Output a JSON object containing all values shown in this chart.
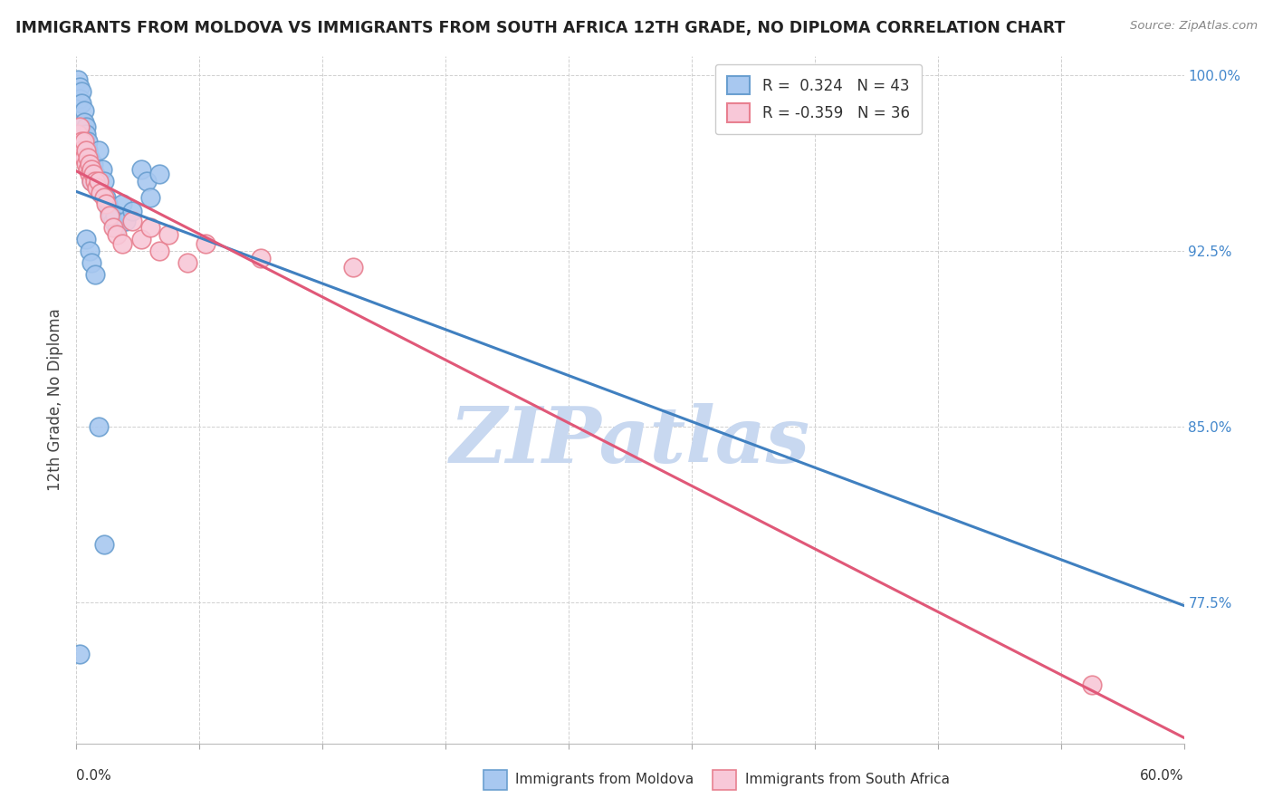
{
  "title": "IMMIGRANTS FROM MOLDOVA VS IMMIGRANTS FROM SOUTH AFRICA 12TH GRADE, NO DIPLOMA CORRELATION CHART",
  "source": "Source: ZipAtlas.com",
  "xlim": [
    0.0,
    0.6
  ],
  "ylim": [
    0.715,
    1.008
  ],
  "yticks": [
    1.0,
    0.925,
    0.85,
    0.775
  ],
  "ytick_labels": [
    "100.0%",
    "92.5%",
    "85.0%",
    "77.5%"
  ],
  "legend_blue_R": 0.324,
  "legend_blue_N": 43,
  "legend_pink_R": -0.359,
  "legend_pink_N": 36,
  "blue_scatter": [
    [
      0.001,
      0.998
    ],
    [
      0.002,
      0.995
    ],
    [
      0.002,
      0.99
    ],
    [
      0.003,
      0.993
    ],
    [
      0.003,
      0.988
    ],
    [
      0.004,
      0.985
    ],
    [
      0.004,
      0.98
    ],
    [
      0.005,
      0.978
    ],
    [
      0.005,
      0.975
    ],
    [
      0.006,
      0.972
    ],
    [
      0.006,
      0.968
    ],
    [
      0.007,
      0.965
    ],
    [
      0.007,
      0.96
    ],
    [
      0.008,
      0.958
    ],
    [
      0.008,
      0.955
    ],
    [
      0.009,
      0.962
    ],
    [
      0.01,
      0.958
    ],
    [
      0.011,
      0.955
    ],
    [
      0.012,
      0.968
    ],
    [
      0.013,
      0.95
    ],
    [
      0.014,
      0.96
    ],
    [
      0.015,
      0.955
    ],
    [
      0.016,
      0.948
    ],
    [
      0.017,
      0.945
    ],
    [
      0.018,
      0.942
    ],
    [
      0.019,
      0.94
    ],
    [
      0.02,
      0.938
    ],
    [
      0.021,
      0.94
    ],
    [
      0.022,
      0.935
    ],
    [
      0.025,
      0.945
    ],
    [
      0.027,
      0.938
    ],
    [
      0.03,
      0.942
    ],
    [
      0.035,
      0.96
    ],
    [
      0.038,
      0.955
    ],
    [
      0.04,
      0.948
    ],
    [
      0.045,
      0.958
    ],
    [
      0.005,
      0.93
    ],
    [
      0.007,
      0.925
    ],
    [
      0.008,
      0.92
    ],
    [
      0.01,
      0.915
    ],
    [
      0.012,
      0.85
    ],
    [
      0.015,
      0.8
    ],
    [
      0.002,
      0.753
    ]
  ],
  "pink_scatter": [
    [
      0.001,
      0.975
    ],
    [
      0.002,
      0.978
    ],
    [
      0.002,
      0.97
    ],
    [
      0.003,
      0.972
    ],
    [
      0.003,
      0.968
    ],
    [
      0.004,
      0.972
    ],
    [
      0.004,
      0.965
    ],
    [
      0.005,
      0.968
    ],
    [
      0.005,
      0.962
    ],
    [
      0.006,
      0.965
    ],
    [
      0.006,
      0.96
    ],
    [
      0.007,
      0.962
    ],
    [
      0.007,
      0.958
    ],
    [
      0.008,
      0.96
    ],
    [
      0.008,
      0.955
    ],
    [
      0.009,
      0.958
    ],
    [
      0.01,
      0.955
    ],
    [
      0.011,
      0.952
    ],
    [
      0.012,
      0.955
    ],
    [
      0.013,
      0.95
    ],
    [
      0.015,
      0.948
    ],
    [
      0.016,
      0.945
    ],
    [
      0.018,
      0.94
    ],
    [
      0.02,
      0.935
    ],
    [
      0.022,
      0.932
    ],
    [
      0.025,
      0.928
    ],
    [
      0.03,
      0.938
    ],
    [
      0.035,
      0.93
    ],
    [
      0.04,
      0.935
    ],
    [
      0.045,
      0.925
    ],
    [
      0.05,
      0.932
    ],
    [
      0.06,
      0.92
    ],
    [
      0.07,
      0.928
    ],
    [
      0.1,
      0.922
    ],
    [
      0.15,
      0.918
    ],
    [
      0.55,
      0.74
    ]
  ],
  "blue_color": "#a8c8f0",
  "blue_edge": "#6a9fd0",
  "pink_color": "#f8c8d8",
  "pink_edge": "#e88090",
  "blue_line_color": "#4080c0",
  "pink_line_color": "#e05878",
  "watermark_text": "ZIPatlas",
  "watermark_color": "#c8d8f0",
  "background_color": "#ffffff",
  "grid_color": "#d0d0d0",
  "ylabel_color": "#444444",
  "ytick_color": "#4488cc",
  "xtick_bottom_left": "0.0%",
  "xtick_bottom_right": "60.0%"
}
